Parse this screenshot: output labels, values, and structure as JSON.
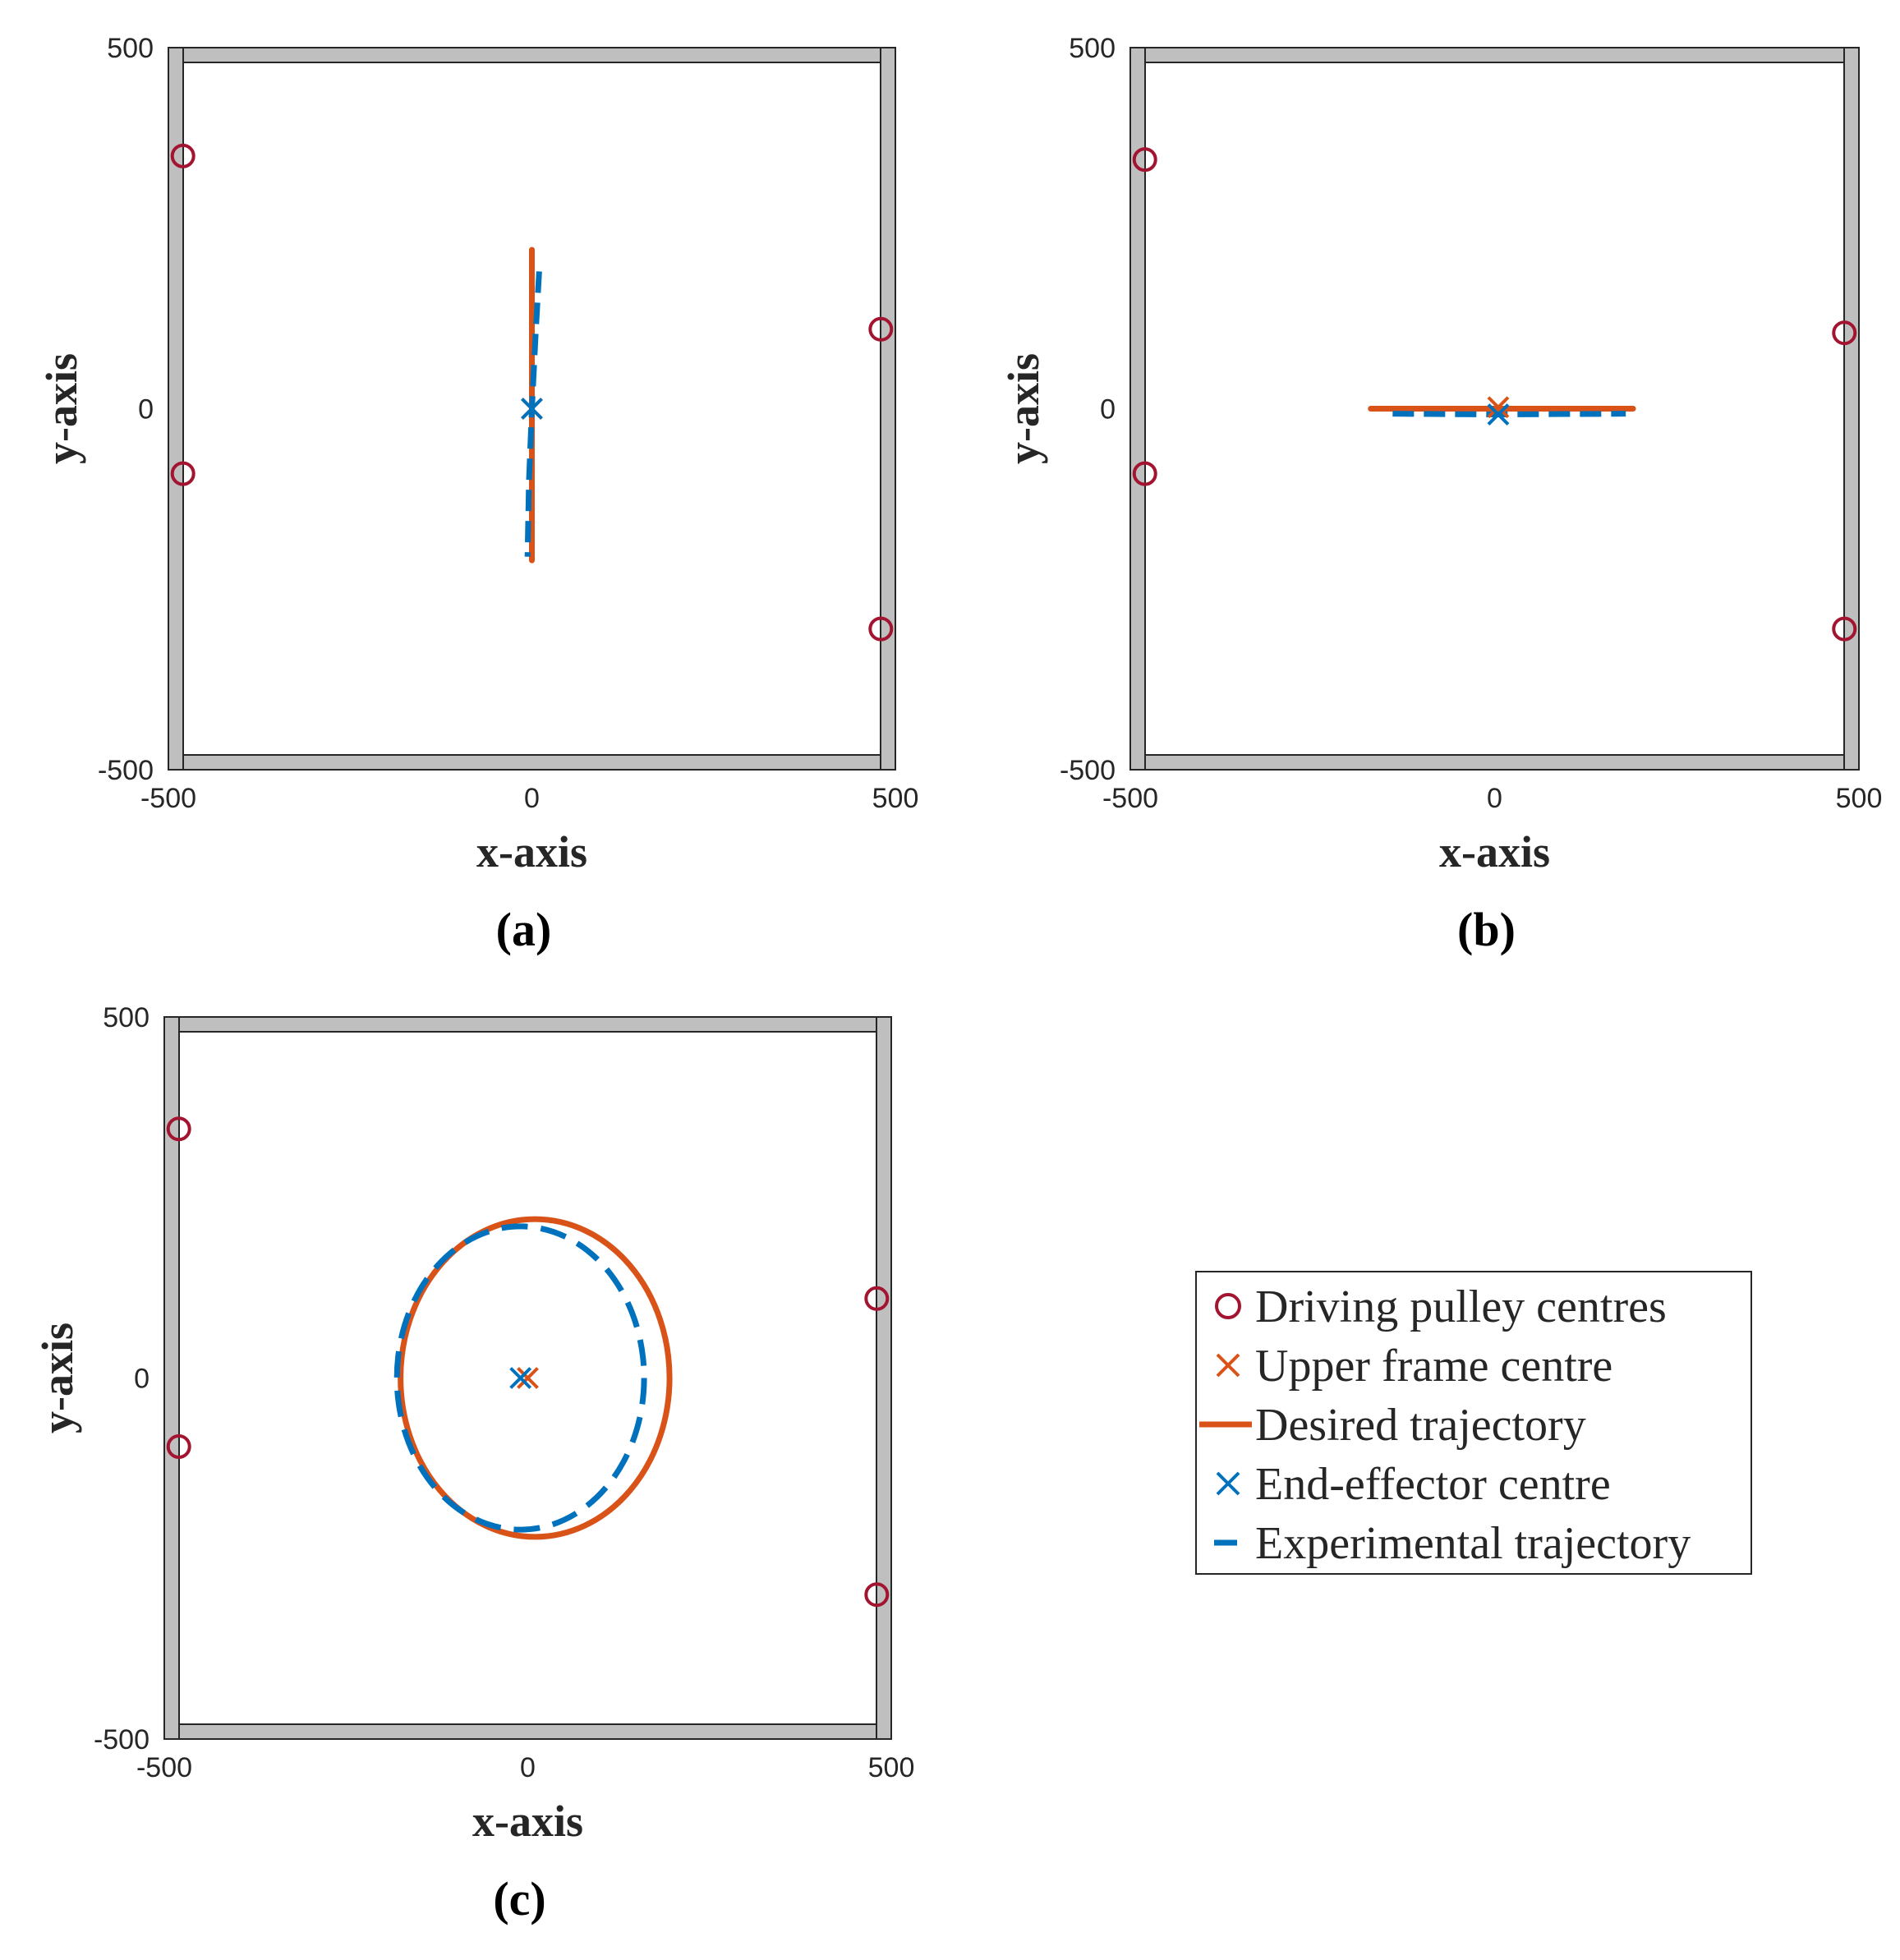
{
  "colors": {
    "pulley": "#A2142F",
    "desired": "#D95319",
    "experimental": "#0072BD",
    "frame": "#BFBFBF",
    "frame_edge": "#262626"
  },
  "chart_data": [
    {
      "type": "scatter",
      "caption": "(a)",
      "xlabel": "x-axis",
      "ylabel": "y-axis",
      "xlim": [
        -500,
        500
      ],
      "ylim": [
        -500,
        500
      ],
      "xticks": [
        "-500",
        "0",
        "500"
      ],
      "yticks": [
        "-500",
        "0",
        "500"
      ],
      "pulleys": [
        [
          -480,
          350
        ],
        [
          -480,
          -90
        ],
        [
          480,
          110
        ],
        [
          480,
          -305
        ]
      ],
      "upper_frame_centre": [
        0,
        0
      ],
      "end_effector_centre": [
        0,
        0
      ],
      "desired": [
        [
          0,
          220
        ],
        [
          0,
          -210
        ]
      ],
      "experimental": [
        [
          10,
          190
        ],
        [
          5,
          100
        ],
        [
          0,
          0
        ],
        [
          -4,
          -100
        ],
        [
          -6,
          -205
        ]
      ]
    },
    {
      "type": "scatter",
      "caption": "(b)",
      "xlabel": "x-axis",
      "ylabel": "y-axis",
      "xlim": [
        -500,
        500
      ],
      "ylim": [
        -500,
        500
      ],
      "xticks": [
        "-500",
        "0",
        "500"
      ],
      "yticks": [
        "-500",
        "0",
        "500"
      ],
      "pulleys": [
        [
          -480,
          345
        ],
        [
          -480,
          -90
        ],
        [
          480,
          105
        ],
        [
          480,
          -305
        ]
      ],
      "upper_frame_centre": [
        5,
        2
      ],
      "end_effector_centre": [
        5,
        -8
      ],
      "desired": [
        [
          -170,
          0
        ],
        [
          190,
          0
        ]
      ],
      "experimental": [
        [
          -140,
          -7
        ],
        [
          0,
          -8
        ],
        [
          180,
          -7
        ]
      ]
    },
    {
      "type": "scatter",
      "caption": "(c)",
      "xlabel": "x-axis",
      "ylabel": "y-axis",
      "xlim": [
        -500,
        500
      ],
      "ylim": [
        -500,
        500
      ],
      "xticks": [
        "-500",
        "0",
        "500"
      ],
      "yticks": [
        "-500",
        "0",
        "500"
      ],
      "pulleys": [
        [
          -480,
          345
        ],
        [
          -480,
          -95
        ],
        [
          480,
          110
        ],
        [
          480,
          -300
        ]
      ],
      "upper_frame_centre": [
        0,
        0
      ],
      "end_effector_centre": [
        -10,
        0
      ],
      "desired_ellipse": {
        "cx": 10,
        "cy": 0,
        "rx": 185,
        "ry": 220
      },
      "experimental_ellipse": {
        "cx": -10,
        "cy": 0,
        "rx": 170,
        "ry": 210
      }
    }
  ],
  "legend": {
    "items": [
      {
        "label": "Driving pulley centres",
        "marker": "circle"
      },
      {
        "label": "Upper frame centre",
        "marker": "x-orange"
      },
      {
        "label": "Desired trajectory",
        "marker": "line"
      },
      {
        "label": "End-effector centre",
        "marker": "x-blue"
      },
      {
        "label": "Experimental trajectory",
        "marker": "dash"
      }
    ]
  }
}
